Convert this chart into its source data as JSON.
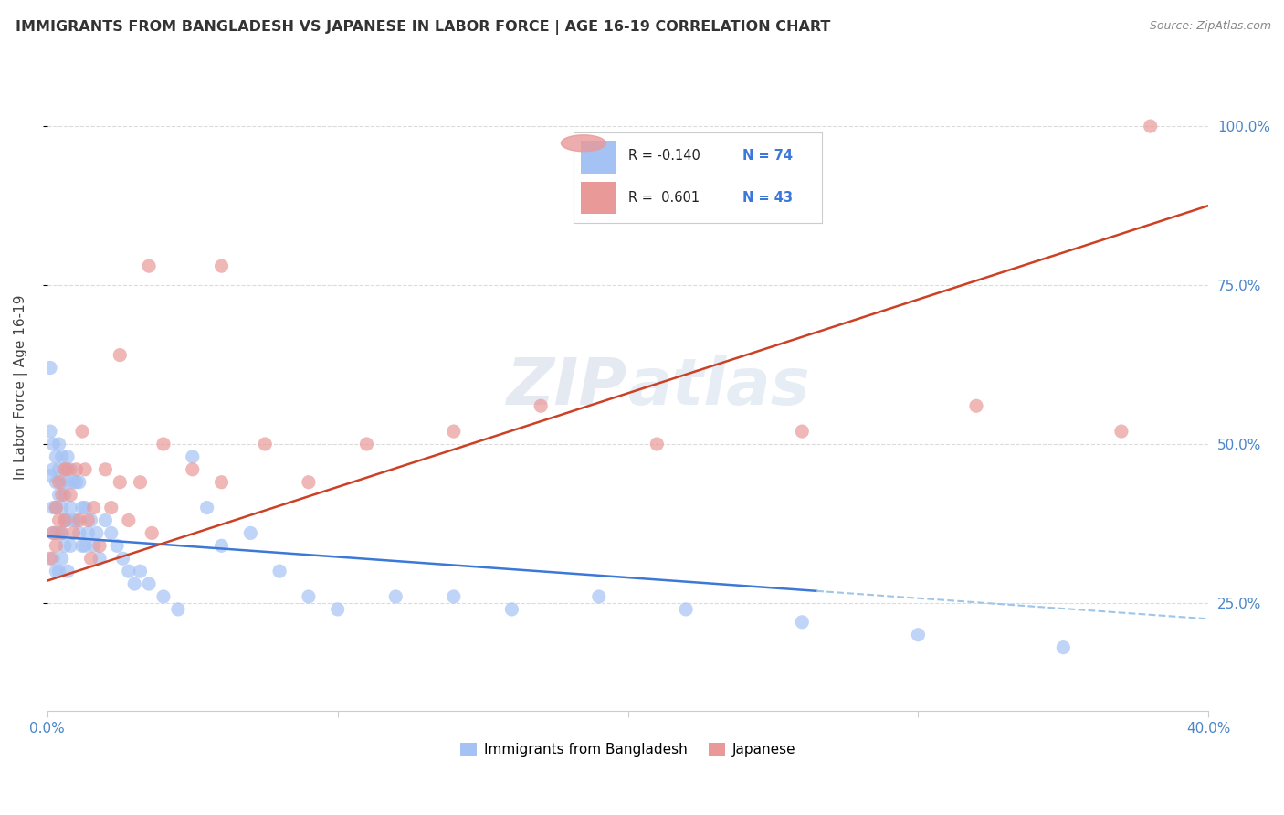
{
  "title": "IMMIGRANTS FROM BANGLADESH VS JAPANESE IN LABOR FORCE | AGE 16-19 CORRELATION CHART",
  "source": "Source: ZipAtlas.com",
  "ylabel": "In Labor Force | Age 16-19",
  "ytick_labels": [
    "100.0%",
    "75.0%",
    "50.0%",
    "25.0%"
  ],
  "ytick_values": [
    1.0,
    0.75,
    0.5,
    0.25
  ],
  "xlim": [
    0.0,
    0.4
  ],
  "ylim": [
    0.08,
    1.1
  ],
  "color_bangladesh": "#a4c2f4",
  "color_japanese": "#ea9999",
  "color_line_bangladesh": "#3c78d8",
  "color_line_japanese": "#cc4125",
  "color_line_dashed": "#9fc5e8",
  "watermark": "ZIPatlas",
  "bangladesh_x": [
    0.001,
    0.001,
    0.001,
    0.002,
    0.002,
    0.002,
    0.002,
    0.002,
    0.003,
    0.003,
    0.003,
    0.003,
    0.003,
    0.004,
    0.004,
    0.004,
    0.004,
    0.004,
    0.005,
    0.005,
    0.005,
    0.005,
    0.005,
    0.006,
    0.006,
    0.006,
    0.006,
    0.007,
    0.007,
    0.007,
    0.007,
    0.008,
    0.008,
    0.008,
    0.009,
    0.009,
    0.01,
    0.01,
    0.011,
    0.011,
    0.012,
    0.012,
    0.013,
    0.013,
    0.014,
    0.015,
    0.016,
    0.017,
    0.018,
    0.02,
    0.022,
    0.024,
    0.026,
    0.028,
    0.03,
    0.032,
    0.035,
    0.04,
    0.045,
    0.05,
    0.055,
    0.06,
    0.07,
    0.08,
    0.09,
    0.1,
    0.12,
    0.14,
    0.16,
    0.19,
    0.22,
    0.26,
    0.3,
    0.35
  ],
  "bangladesh_y": [
    0.62,
    0.52,
    0.45,
    0.5,
    0.46,
    0.4,
    0.36,
    0.32,
    0.48,
    0.44,
    0.4,
    0.36,
    0.3,
    0.5,
    0.46,
    0.42,
    0.36,
    0.3,
    0.48,
    0.44,
    0.4,
    0.36,
    0.32,
    0.46,
    0.42,
    0.38,
    0.34,
    0.48,
    0.44,
    0.38,
    0.3,
    0.46,
    0.4,
    0.34,
    0.44,
    0.38,
    0.44,
    0.38,
    0.44,
    0.36,
    0.4,
    0.34,
    0.4,
    0.34,
    0.36,
    0.38,
    0.34,
    0.36,
    0.32,
    0.38,
    0.36,
    0.34,
    0.32,
    0.3,
    0.28,
    0.3,
    0.28,
    0.26,
    0.24,
    0.48,
    0.4,
    0.34,
    0.36,
    0.3,
    0.26,
    0.24,
    0.26,
    0.26,
    0.24,
    0.26,
    0.24,
    0.22,
    0.2,
    0.18
  ],
  "japanese_x": [
    0.001,
    0.002,
    0.003,
    0.003,
    0.004,
    0.004,
    0.005,
    0.005,
    0.006,
    0.006,
    0.007,
    0.008,
    0.009,
    0.01,
    0.011,
    0.012,
    0.013,
    0.014,
    0.015,
    0.016,
    0.018,
    0.02,
    0.022,
    0.025,
    0.028,
    0.032,
    0.036,
    0.04,
    0.05,
    0.06,
    0.075,
    0.09,
    0.11,
    0.14,
    0.17,
    0.21,
    0.26,
    0.32,
    0.37,
    0.025,
    0.035,
    0.06,
    0.38
  ],
  "japanese_y": [
    0.32,
    0.36,
    0.4,
    0.34,
    0.38,
    0.44,
    0.42,
    0.36,
    0.46,
    0.38,
    0.46,
    0.42,
    0.36,
    0.46,
    0.38,
    0.52,
    0.46,
    0.38,
    0.32,
    0.4,
    0.34,
    0.46,
    0.4,
    0.44,
    0.38,
    0.44,
    0.36,
    0.5,
    0.46,
    0.44,
    0.5,
    0.44,
    0.5,
    0.52,
    0.56,
    0.5,
    0.52,
    0.56,
    0.52,
    0.64,
    0.78,
    0.78,
    1.0
  ],
  "trendline_bd_x0": 0.0,
  "trendline_bd_x1": 0.4,
  "trendline_bd_y0": 0.355,
  "trendline_bd_y1": 0.225,
  "trendline_bd_solid_end_x": 0.265,
  "trendline_jp_x0": 0.0,
  "trendline_jp_x1": 0.4,
  "trendline_jp_y0": 0.285,
  "trendline_jp_y1": 0.875,
  "background_color": "#ffffff",
  "grid_color": "#cccccc"
}
